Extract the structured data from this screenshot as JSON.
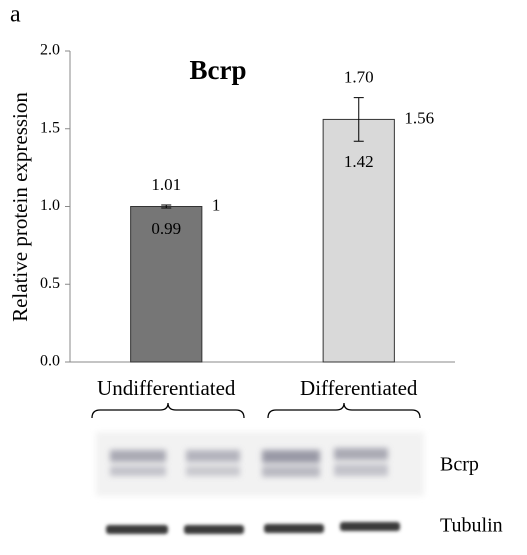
{
  "panel_label": "a",
  "chart_data": {
    "type": "bar",
    "title": "Bcrp",
    "y_label": "Relative protein expression",
    "categories": [
      "Undifferentiated",
      "Differentiated"
    ],
    "series": [
      {
        "name": "Relative protein expression",
        "colors": [
          "#767676",
          "#d9d9d9"
        ],
        "values": [
          1,
          1.56
        ],
        "error_upper": [
          1.01,
          1.7
        ],
        "error_upper_labels": [
          "1.01",
          "1.70"
        ],
        "error_lower": [
          0.99,
          1.42
        ],
        "error_lower_labels": [
          "0.99",
          "1.42"
        ]
      }
    ],
    "ylim": [
      0,
      2
    ],
    "yticks": [
      {
        "value": 0,
        "label": "0.0"
      },
      {
        "value": 0.5,
        "label": "0.5"
      },
      {
        "value": 1,
        "label": "1.0"
      },
      {
        "value": 1.5,
        "label": "1.5"
      },
      {
        "value": 2,
        "label": "2.0"
      }
    ],
    "grid": false
  },
  "blot": {
    "rows": [
      "Bcrp",
      "Tubulin"
    ]
  }
}
